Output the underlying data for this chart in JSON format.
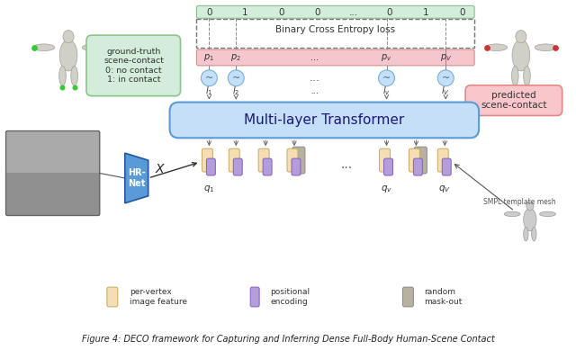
{
  "bg_color": "#ffffff",
  "binary_numbers": [
    "0",
    "1",
    "0",
    "0",
    "...",
    "0",
    "1",
    "0"
  ],
  "binary_bar_color": "#d4edda",
  "bce_text": "Binary Cross Entropy loss",
  "p_bar_color": "#f5c6cb",
  "circle_color": "#c5dff8",
  "transformer_color": "#c5dff8",
  "transformer_text": "Multi-layer Transformer",
  "hrnet_color": "#6fa8dc",
  "hrnet_text": "HR-\nNet",
  "x_label": "X",
  "feat_color": "#f5deb3",
  "pos_color": "#b39ddb",
  "mask_color": "#b8b0a0",
  "gt_box_color": "#d4edda",
  "gt_text": "ground-truth\nscene-contact\n0: no contact\n1: in contact",
  "pred_box_color": "#f9c6cb",
  "pred_text": "predicted\nscene-contact",
  "smpl_text": "SMPL template mesh",
  "legend_feat": "per-vertex\nimage feature",
  "legend_pos": "positional\nencoding",
  "legend_mask": "random\nmask-out",
  "caption": "Figure 4: DECO framework for Capturing and Inferring Dense Full-Body Human-Scene Contact"
}
